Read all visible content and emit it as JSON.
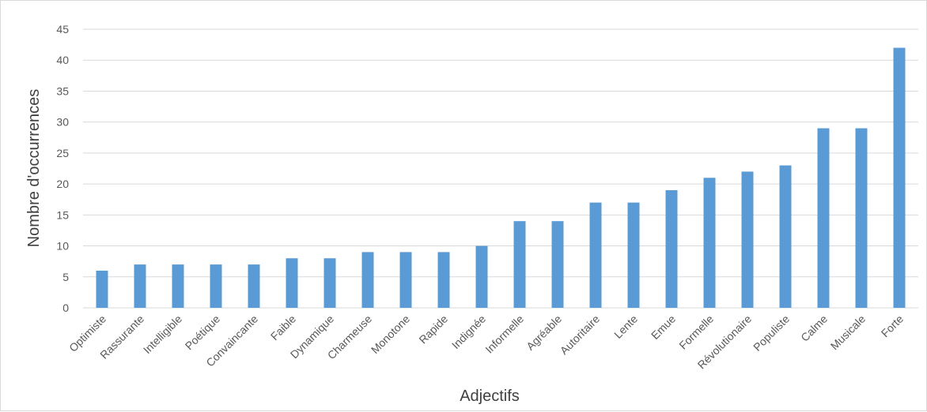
{
  "chart_data": {
    "type": "bar",
    "title": "",
    "xlabel": "Adjectifs",
    "ylabel": "Nombre d'occurrences",
    "ylim": [
      0,
      45
    ],
    "ytick_step": 5,
    "grid": true,
    "bar_color": "#5b9bd5",
    "categories": [
      "Optimiste",
      "Rassurante",
      "Intelligible",
      "Poétique",
      "Convaincante",
      "Faible",
      "Dynamique",
      "Charmeuse",
      "Monotone",
      "Rapide",
      "Indignée",
      "Informelle",
      "Agréable",
      "Autoritaire",
      "Lente",
      "Emue",
      "Formelle",
      "Révolutionaire",
      "Populiste",
      "Calme",
      "Musicale",
      "Forte"
    ],
    "values": [
      6,
      7,
      7,
      7,
      7,
      8,
      8,
      9,
      9,
      9,
      10,
      14,
      14,
      17,
      17,
      19,
      21,
      22,
      23,
      29,
      29,
      42
    ]
  }
}
